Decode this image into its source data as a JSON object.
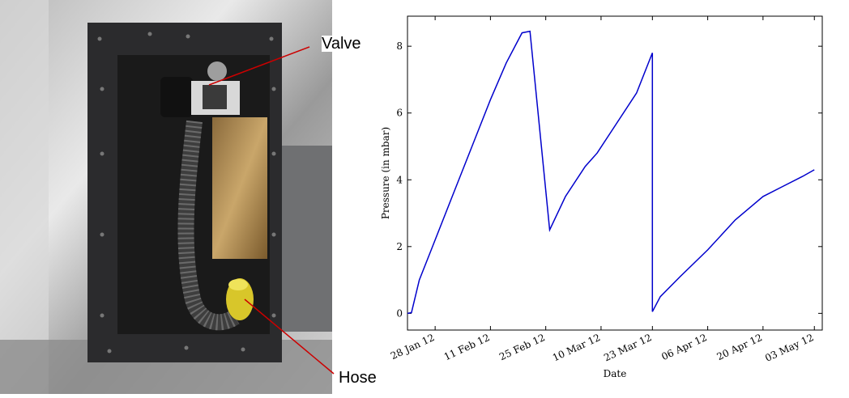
{
  "photo": {
    "labels": {
      "valve": "Valve",
      "hose": "Hose"
    }
  },
  "colors": {
    "series": "#0000cc",
    "callout_line": "#cc0000"
  },
  "chart_data": {
    "type": "line",
    "xlabel": "Date",
    "ylabel": "Pressure (in mbar)",
    "ylim": [
      -0.5,
      8.9
    ],
    "xlim": [
      "2012-01-21",
      "2012-05-05"
    ],
    "y_ticks": [
      0,
      2,
      4,
      6,
      8
    ],
    "x_ticks": [
      {
        "date": "2012-01-28",
        "label": "28 Jan 12"
      },
      {
        "date": "2012-02-11",
        "label": "11 Feb 12"
      },
      {
        "date": "2012-02-25",
        "label": "25 Feb 12"
      },
      {
        "date": "2012-03-10",
        "label": "10 Mar 12"
      },
      {
        "date": "2012-03-23",
        "label": "23 Mar 12"
      },
      {
        "date": "2012-04-06",
        "label": "06 Apr 12"
      },
      {
        "date": "2012-04-20",
        "label": "20 Apr 12"
      },
      {
        "date": "2012-05-03",
        "label": "03 May 12"
      }
    ],
    "grid": false,
    "series": [
      {
        "x": [
          "2012-01-21",
          "2012-01-22",
          "2012-01-24",
          "2012-01-27",
          "2012-02-01",
          "2012-02-06",
          "2012-02-11",
          "2012-02-15",
          "2012-02-19",
          "2012-02-21",
          "2012-02-26",
          "2012-03-01",
          "2012-03-06",
          "2012-03-09",
          "2012-03-14",
          "2012-03-19",
          "2012-03-23",
          "2012-03-23",
          "2012-03-25",
          "2012-03-30",
          "2012-04-06",
          "2012-04-13",
          "2012-04-20",
          "2012-04-25",
          "2012-04-30",
          "2012-05-03"
        ],
        "y": [
          0,
          0.02,
          1.0,
          1.9,
          3.4,
          4.9,
          6.4,
          7.5,
          8.4,
          8.45,
          2.5,
          3.5,
          4.4,
          4.8,
          5.7,
          6.6,
          7.8,
          0.05,
          0.5,
          1.1,
          1.9,
          2.8,
          3.5,
          3.8,
          4.1,
          4.3
        ]
      }
    ]
  }
}
